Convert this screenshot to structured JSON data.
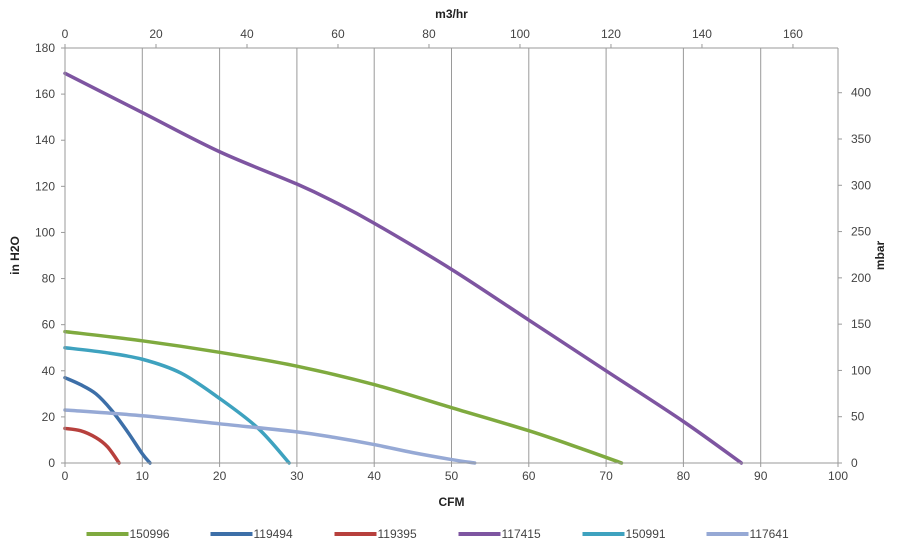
{
  "chart_data": {
    "type": "line",
    "x_bottom": {
      "label": "CFM",
      "range": [
        0,
        100
      ],
      "ticks": [
        0,
        10,
        20,
        30,
        40,
        50,
        60,
        70,
        80,
        90,
        100
      ]
    },
    "x_top": {
      "label": "m3/hr",
      "range": [
        0,
        169.9
      ],
      "ticks": [
        0,
        20,
        40,
        60,
        80,
        100,
        120,
        140,
        160
      ]
    },
    "y_left": {
      "label": "in H2O",
      "range": [
        0,
        180
      ],
      "ticks": [
        0,
        20,
        40,
        60,
        80,
        100,
        120,
        140,
        160,
        180
      ]
    },
    "y_right": {
      "label": "mbar",
      "range": [
        0,
        448.3
      ],
      "ticks": [
        0,
        50,
        100,
        150,
        200,
        250,
        300,
        350,
        400
      ]
    },
    "grid": {
      "vertical": true,
      "horizontal": false
    },
    "legend_position": "bottom",
    "series": [
      {
        "name": "150996",
        "color": "#7faa3f",
        "points": [
          [
            0,
            57
          ],
          [
            10,
            53
          ],
          [
            20,
            48
          ],
          [
            30,
            42
          ],
          [
            40,
            34
          ],
          [
            50,
            24
          ],
          [
            60,
            14
          ],
          [
            67,
            6
          ],
          [
            72,
            0
          ]
        ]
      },
      {
        "name": "119494",
        "color": "#3d6fa8",
        "points": [
          [
            0,
            37
          ],
          [
            2,
            34
          ],
          [
            4,
            30
          ],
          [
            6,
            23
          ],
          [
            8,
            14
          ],
          [
            10,
            4
          ],
          [
            11,
            0
          ]
        ]
      },
      {
        "name": "119395",
        "color": "#b7403d",
        "points": [
          [
            0,
            15
          ],
          [
            2,
            14
          ],
          [
            4,
            11
          ],
          [
            5.5,
            7
          ],
          [
            7,
            0
          ]
        ]
      },
      {
        "name": "117415",
        "color": "#7e55a1",
        "points": [
          [
            0,
            169
          ],
          [
            10,
            152
          ],
          [
            20,
            135
          ],
          [
            30,
            121
          ],
          [
            35,
            113
          ],
          [
            40,
            104
          ],
          [
            50,
            84
          ],
          [
            60,
            62
          ],
          [
            70,
            40
          ],
          [
            80,
            18
          ],
          [
            87.5,
            0
          ]
        ]
      },
      {
        "name": "150991",
        "color": "#3ea2bf",
        "points": [
          [
            0,
            50
          ],
          [
            5,
            48
          ],
          [
            10,
            45
          ],
          [
            15,
            39
          ],
          [
            20,
            28
          ],
          [
            25,
            15
          ],
          [
            29,
            0
          ]
        ]
      },
      {
        "name": "117641",
        "color": "#96a9d5",
        "points": [
          [
            0,
            23
          ],
          [
            10,
            20.5
          ],
          [
            20,
            17
          ],
          [
            30,
            13.5
          ],
          [
            35,
            11
          ],
          [
            40,
            8
          ],
          [
            45,
            4.5
          ],
          [
            50,
            1.5
          ],
          [
            53,
            0
          ]
        ]
      }
    ]
  }
}
